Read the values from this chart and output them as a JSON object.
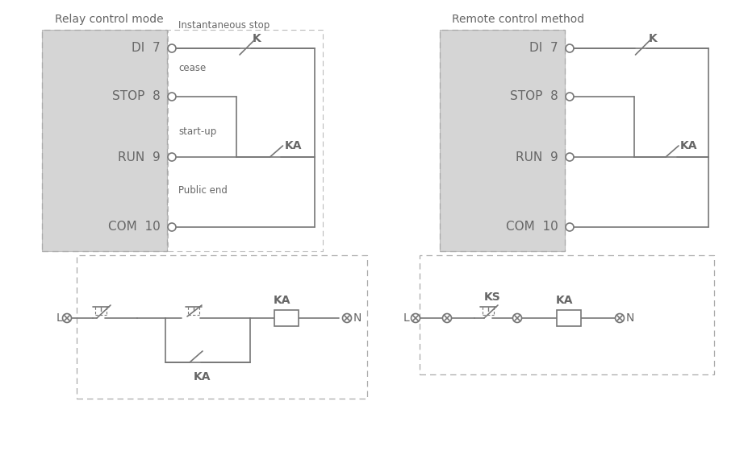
{
  "bg_color": "#ffffff",
  "box_fill": "#d5d5d5",
  "line_color": "#777777",
  "text_color": "#666666",
  "title1": "Relay control mode",
  "title2": "Remote control method",
  "ann1": "Instantaneous stop",
  "ann2": "cease",
  "ann3": "start-up",
  "ann4": "Public end",
  "row_labels": [
    "DI  7",
    "STOP  8",
    "RUN  9",
    "COM  10"
  ],
  "figsize": [
    9.27,
    5.7
  ],
  "dpi": 100
}
